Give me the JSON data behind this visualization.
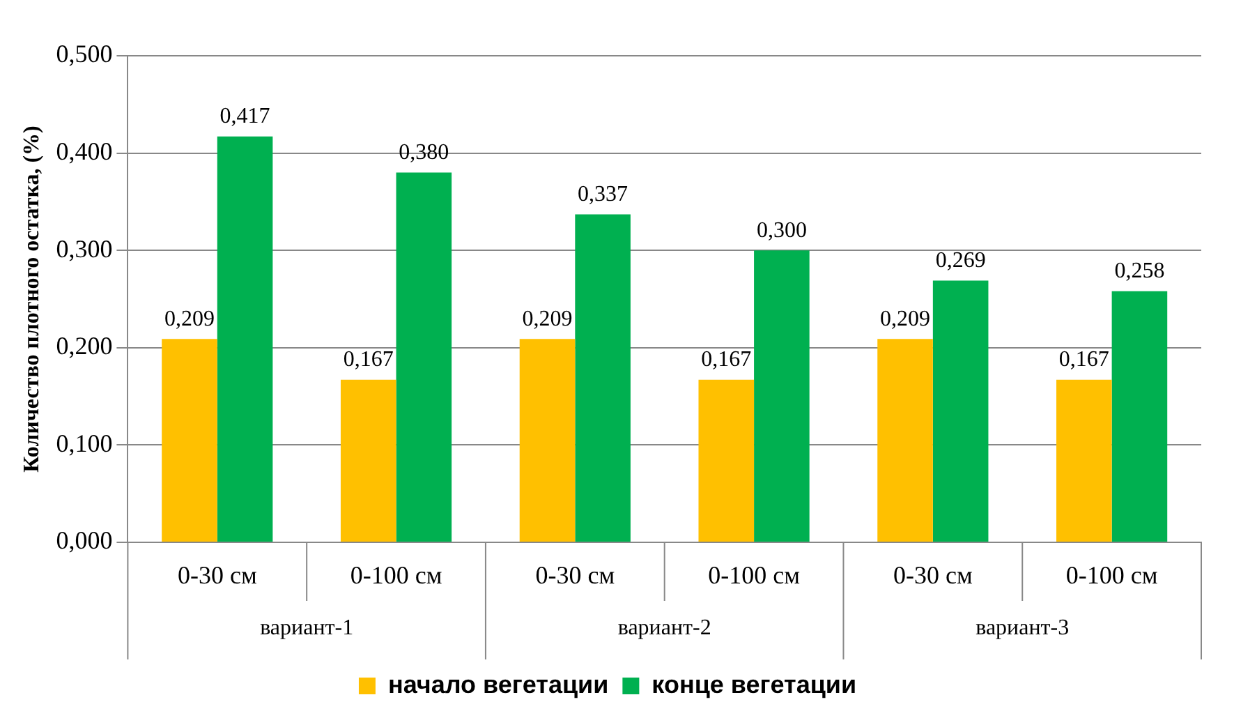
{
  "chart_data": {
    "type": "bar",
    "ylabel": "Количество плотного остатка, (%)",
    "categories": [
      "0-30 см",
      "0-100 см",
      "0-30 см",
      "0-100 см",
      "0-30 см",
      "0-100 см"
    ],
    "annotations": [
      "вариант-1",
      "вариант-2",
      "вариант-3"
    ],
    "series": [
      {
        "name": "начало вегетации",
        "color": "#ffc000",
        "values": [
          0.209,
          0.167,
          0.209,
          0.167,
          0.209,
          0.167
        ],
        "value_labels": [
          "0,209",
          "0,167",
          "0,209",
          "0,167",
          "0,209",
          "0,167"
        ]
      },
      {
        "name": "конце вегетации",
        "color": "#00b050",
        "values": [
          0.417,
          0.38,
          0.337,
          0.3,
          0.269,
          0.258
        ],
        "value_labels": [
          "0,417",
          "0,380",
          "0,337",
          "0,300",
          "0,269",
          "0,258"
        ]
      }
    ],
    "ylim": [
      0,
      0.5
    ],
    "yticks": [
      {
        "value": 0,
        "label": "0,000"
      },
      {
        "value": 0.1,
        "label": "0,100"
      },
      {
        "value": 0.2,
        "label": "0,200"
      },
      {
        "value": 0.3,
        "label": "0,300"
      },
      {
        "value": 0.4,
        "label": "0,400"
      },
      {
        "value": 0.5,
        "label": "0,500"
      }
    ],
    "grid": "y",
    "legend": "bottom"
  }
}
